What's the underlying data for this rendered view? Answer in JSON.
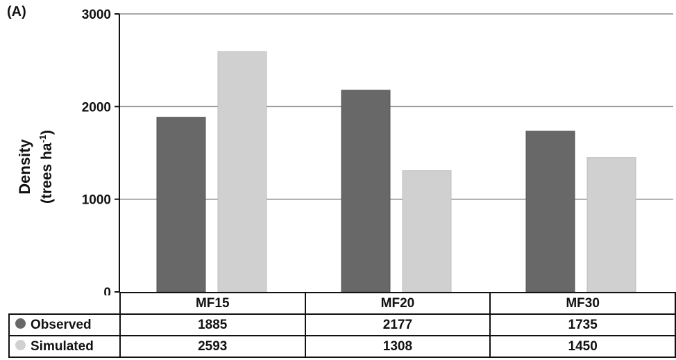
{
  "panel_label": "(A)",
  "colors": {
    "observed": "#686868",
    "simulated": "#d0d0d0",
    "grid": "#8a8a8a",
    "axis": "#111111"
  },
  "chart_data": {
    "type": "bar",
    "title": "",
    "ylabel_line1": "Density",
    "ylabel_line2_prefix": "(trees ha",
    "ylabel_sup": "-1",
    "ylabel_line2_suffix": ")",
    "xlabel": "",
    "categories": [
      "MF15",
      "MF20",
      "MF30"
    ],
    "series": [
      {
        "name": "Observed",
        "values": [
          1885,
          2177,
          1735
        ]
      },
      {
        "name": "Simulated",
        "values": [
          2593,
          1308,
          1450
        ]
      }
    ],
    "ylim": [
      0,
      3000
    ],
    "yticks": [
      "0",
      "1000",
      "2000",
      "3000"
    ],
    "grid": true,
    "legend_placement": "data-table-rows"
  }
}
